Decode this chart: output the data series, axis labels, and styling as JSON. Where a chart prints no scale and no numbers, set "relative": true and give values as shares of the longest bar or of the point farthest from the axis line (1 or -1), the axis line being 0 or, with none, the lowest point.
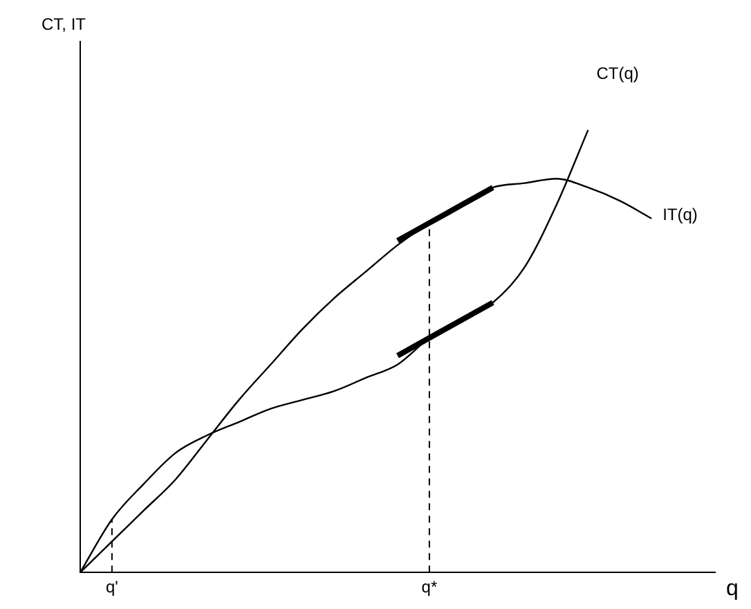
{
  "chart_data": {
    "type": "line",
    "relative": true,
    "xlabel": "q",
    "annotations": [
      "CT, IT"
    ],
    "marker": "none",
    "line_style": "solid",
    "grid": false,
    "legend": false,
    "categories": [
      null,
      "q'",
      null,
      null,
      null,
      null,
      null,
      null,
      null,
      null,
      null,
      "q*",
      null,
      null,
      null,
      null,
      null,
      null,
      null,
      null,
      null
    ],
    "series": [
      {
        "name": "CT(q)",
        "color": "#000000",
        "values": [
          0,
          0.12,
          0.2,
          0.27,
          0.31,
          0.34,
          0.37,
          0.39,
          0.41,
          0.44,
          0.47,
          0.53,
          0.57,
          0.61,
          0.69,
          0.83,
          1,
          null,
          null,
          null,
          null
        ]
      },
      {
        "name": "IT(q)",
        "color": "#000000",
        "values": [
          0,
          0.07,
          0.14,
          0.21,
          0.3,
          0.39,
          0.47,
          0.55,
          0.62,
          0.68,
          0.74,
          0.79,
          0.83,
          0.87,
          0.88,
          0.89,
          0.87,
          0.84,
          0.8,
          null,
          null
        ]
      },
      {
        "color": "#000000",
        "values": [
          null,
          null,
          null,
          null,
          null,
          null,
          null,
          null,
          null,
          null,
          0.75,
          0.79,
          0.83,
          0.87,
          null,
          null,
          null,
          null,
          null,
          null,
          null
        ]
      },
      {
        "color": "#000000",
        "values": [
          null,
          null,
          null,
          null,
          null,
          null,
          null,
          null,
          null,
          null,
          0.49,
          0.53,
          0.57,
          0.61,
          null,
          null,
          null,
          null,
          null,
          null,
          null
        ]
      }
    ],
    "ref_lines": [
      {
        "axis": "x",
        "value": "q'",
        "line_style": "dashed"
      },
      {
        "axis": "x",
        "value": "q*",
        "line_style": "dashed"
      }
    ]
  }
}
